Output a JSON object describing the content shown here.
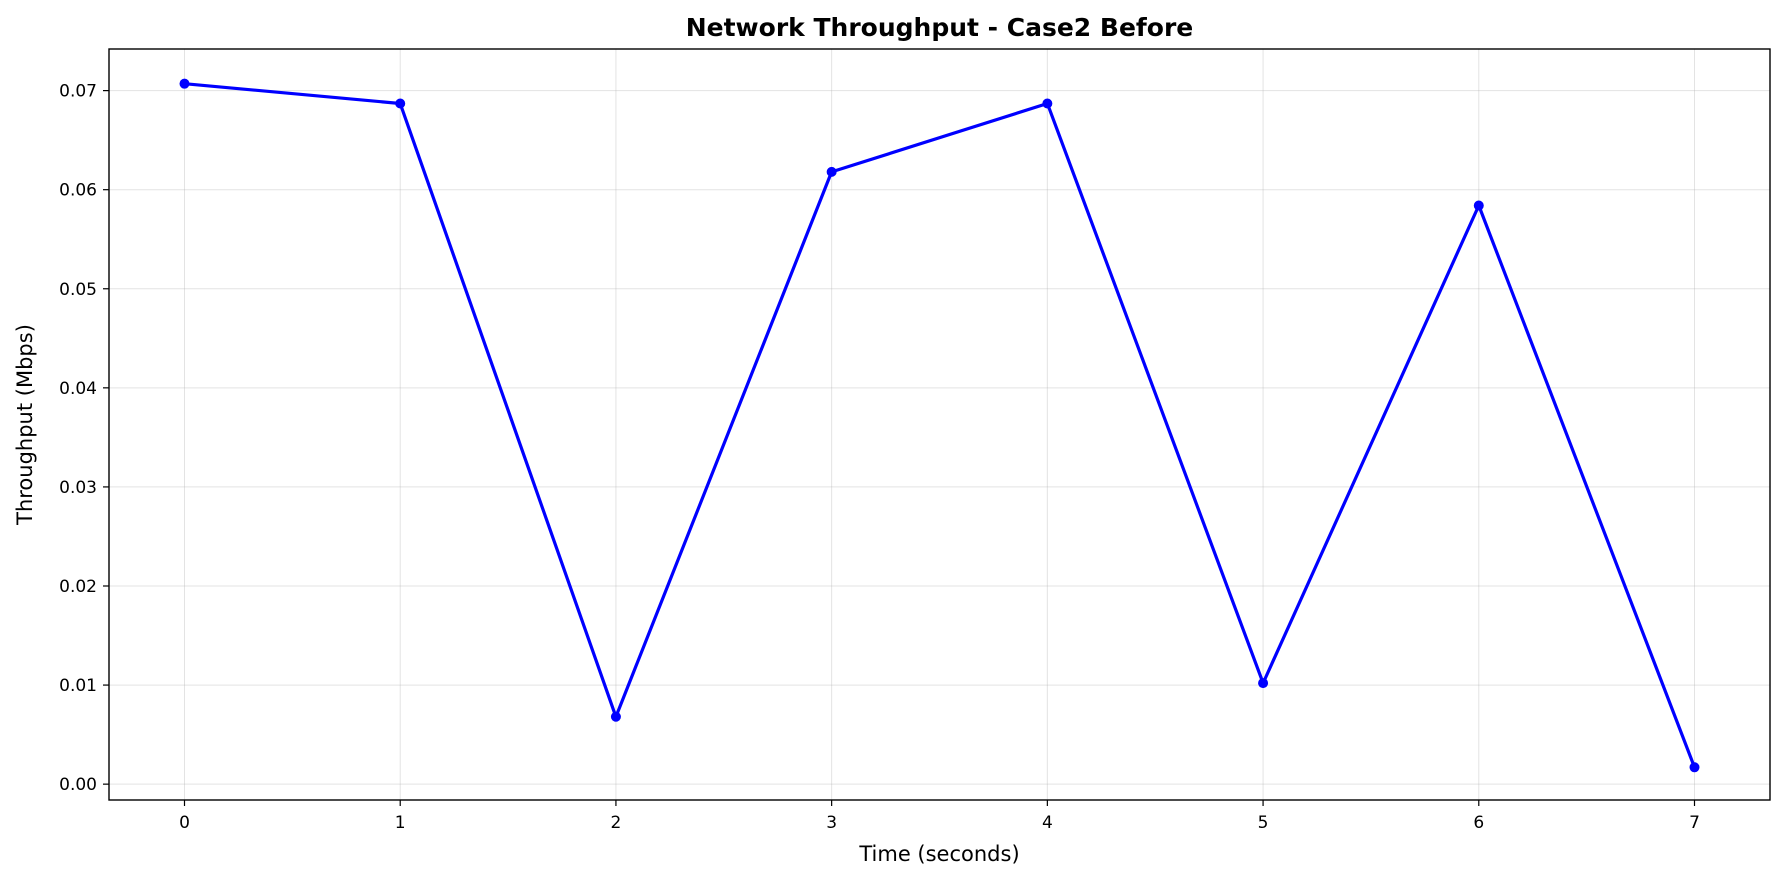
{
  "chart_data": {
    "type": "line",
    "title": "Network Throughput - Case2 Before",
    "xlabel": "Time (seconds)",
    "ylabel": "Throughput (Mbps)",
    "xlim": [
      -0.35,
      7.35
    ],
    "ylim": [
      -0.0016,
      0.0742
    ],
    "x_ticks": [
      0,
      1,
      2,
      3,
      4,
      5,
      6,
      7
    ],
    "y_ticks": [
      0.0,
      0.01,
      0.02,
      0.03,
      0.04,
      0.05,
      0.06,
      0.07
    ],
    "y_tick_labels": [
      "0.00",
      "0.01",
      "0.02",
      "0.03",
      "0.04",
      "0.05",
      "0.06",
      "0.07"
    ],
    "grid": true,
    "series": [
      {
        "color": "#0000ff",
        "marker": "circle",
        "x": [
          0,
          1,
          2,
          3,
          4,
          5,
          6,
          7
        ],
        "y": [
          0.0707,
          0.0687,
          0.0068,
          0.0618,
          0.0687,
          0.0102,
          0.0584,
          0.0017
        ]
      }
    ]
  }
}
